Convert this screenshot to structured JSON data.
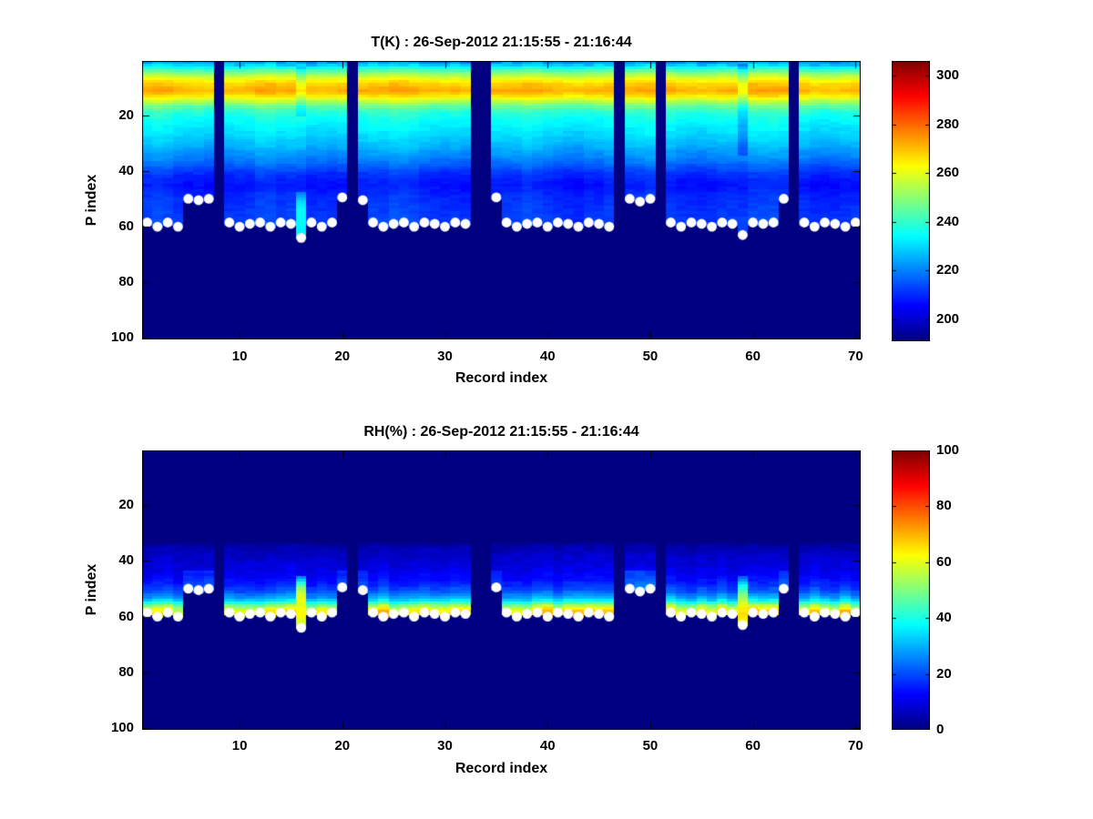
{
  "figure": {
    "background": "#ffffff",
    "axis_color": "#000000",
    "marker_color": "#ffffff",
    "colormap": "jet"
  },
  "chart_data": [
    {
      "type": "heatmap",
      "id": "temperature",
      "title": "T(K) : 26-Sep-2012 21:15:55 - 21:16:44",
      "xlabel": "Record index",
      "ylabel": "P index",
      "x_ticks": [
        10,
        20,
        30,
        40,
        50,
        60,
        70
      ],
      "y_ticks": [
        20,
        40,
        60,
        80,
        100
      ],
      "x_range": [
        0.5,
        70.5
      ],
      "y_range": [
        0.5,
        100.5
      ],
      "y_axis_reversed": true,
      "grid": false,
      "n_records": 70,
      "n_levels": 100,
      "colorbar": {
        "position": "right",
        "ticks": [
          200,
          220,
          240,
          260,
          280,
          300
        ],
        "vmin": 191,
        "vmax": 306
      },
      "missing_records": [
        8,
        21,
        33,
        34,
        47,
        51,
        64
      ],
      "surface_p": [
        58.5,
        60,
        58.5,
        60,
        50,
        50.5,
        50,
        null,
        58.5,
        60,
        59,
        58.5,
        60,
        58.5,
        59,
        64,
        58.5,
        60,
        58.5,
        49.5,
        null,
        50.5,
        58.5,
        60,
        59,
        58.5,
        60,
        58.5,
        59,
        60,
        58.5,
        59,
        null,
        null,
        49.5,
        58.5,
        60,
        59,
        58.5,
        60,
        58.5,
        59,
        60,
        58.5,
        59,
        60,
        null,
        50,
        51,
        50,
        null,
        58.5,
        60,
        58.5,
        59,
        60,
        58.5,
        59,
        63,
        58.5,
        59,
        58.5,
        50,
        null,
        58.5,
        60,
        58.5,
        59,
        60,
        58.5
      ],
      "profile_p_value": [
        [
          0.5,
          221
        ],
        [
          1.5,
          226
        ],
        [
          2.5,
          232
        ],
        [
          3.5,
          240
        ],
        [
          4.5,
          247
        ],
        [
          5.5,
          253
        ],
        [
          6.5,
          258
        ],
        [
          7.5,
          263
        ],
        [
          8.5,
          267
        ],
        [
          9.5,
          270
        ],
        [
          11,
          272
        ],
        [
          12.5,
          268
        ],
        [
          13.5,
          263
        ],
        [
          14.5,
          257
        ],
        [
          15.5,
          252
        ],
        [
          16.5,
          247
        ],
        [
          17.5,
          243
        ],
        [
          19,
          239
        ],
        [
          21,
          236
        ],
        [
          23,
          234
        ],
        [
          25,
          232
        ],
        [
          27,
          230
        ],
        [
          29,
          228
        ],
        [
          31,
          226
        ],
        [
          33,
          223
        ],
        [
          35,
          221
        ],
        [
          37,
          218
        ],
        [
          39,
          214.5
        ],
        [
          41,
          211
        ],
        [
          43,
          208.5
        ],
        [
          45,
          207.5
        ],
        [
          47,
          208.5
        ],
        [
          49,
          210
        ],
        [
          52,
          211
        ],
        [
          56,
          212
        ],
        [
          60,
          212.5
        ],
        [
          64,
          212.5
        ]
      ],
      "anomalies": [
        {
          "record": 16,
          "cold_notch": {
            "p_from": 3,
            "p_to": 20,
            "delta": -8
          },
          "plume": [
            [
              48,
              220
            ],
            [
              51,
              230
            ],
            [
              54,
              234
            ],
            [
              58,
              234
            ],
            [
              62,
              233
            ],
            [
              64,
              231
            ]
          ]
        },
        {
          "record": 59,
          "cold_notch": {
            "p_from": 2,
            "p_to": 34,
            "delta": -8
          },
          "plume": null
        }
      ]
    },
    {
      "type": "heatmap",
      "id": "relative-humidity",
      "title": "RH(%) : 26-Sep-2012 21:15:55 - 21:16:44",
      "xlabel": "Record index",
      "ylabel": "P index",
      "x_ticks": [
        10,
        20,
        30,
        40,
        50,
        60,
        70
      ],
      "y_ticks": [
        20,
        40,
        60,
        80,
        100
      ],
      "x_range": [
        0.5,
        70.5
      ],
      "y_range": [
        0.5,
        100.5
      ],
      "y_axis_reversed": true,
      "grid": false,
      "n_records": 70,
      "n_levels": 100,
      "colorbar": {
        "position": "right",
        "ticks": [
          0,
          20,
          40,
          60,
          80,
          100
        ],
        "vmin": 0,
        "vmax": 100
      },
      "missing_records": [
        8,
        21,
        33,
        34,
        47,
        51,
        64
      ],
      "surface_p": [
        58.5,
        60,
        58.5,
        60,
        50,
        50.5,
        50,
        null,
        58.5,
        60,
        59,
        58.5,
        60,
        58.5,
        59,
        64,
        58.5,
        60,
        58.5,
        49.5,
        null,
        50.5,
        58.5,
        60,
        59,
        58.5,
        60,
        58.5,
        59,
        60,
        58.5,
        59,
        null,
        null,
        49.5,
        58.5,
        60,
        59,
        58.5,
        60,
        58.5,
        59,
        60,
        58.5,
        59,
        60,
        null,
        50,
        51,
        50,
        null,
        58.5,
        60,
        58.5,
        59,
        60,
        58.5,
        59,
        63,
        58.5,
        59,
        58.5,
        50,
        null,
        58.5,
        60,
        58.5,
        59,
        60,
        58.5
      ],
      "profile_p_value": [
        [
          0.5,
          0
        ],
        [
          33,
          0
        ],
        [
          35,
          4
        ],
        [
          38,
          7
        ],
        [
          42,
          9
        ],
        [
          46,
          12
        ],
        [
          49,
          16
        ],
        [
          51,
          21
        ],
        [
          53,
          28
        ],
        [
          54.5,
          36
        ],
        [
          55.5,
          46
        ],
        [
          56.5,
          54
        ],
        [
          57.5,
          60
        ],
        [
          58.5,
          63
        ],
        [
          60,
          63
        ],
        [
          64,
          60
        ]
      ],
      "high_surface_boost": {
        "max_surface": 52,
        "from_p": 44,
        "delta": 6
      },
      "anomalies": [
        {
          "record": 16,
          "plume": [
            [
              46,
              25
            ],
            [
              48,
              42
            ],
            [
              50,
              54
            ],
            [
              52,
              60
            ],
            [
              55,
              62
            ],
            [
              58,
              62
            ],
            [
              61,
              59
            ],
            [
              64,
              55
            ]
          ]
        },
        {
          "record": 59,
          "plume": [
            [
              46,
              22
            ],
            [
              49,
              38
            ],
            [
              52,
              50
            ],
            [
              55,
              58
            ],
            [
              57,
              63
            ],
            [
              59,
              64
            ],
            [
              61,
              60
            ],
            [
              63,
              55
            ]
          ]
        }
      ]
    }
  ]
}
